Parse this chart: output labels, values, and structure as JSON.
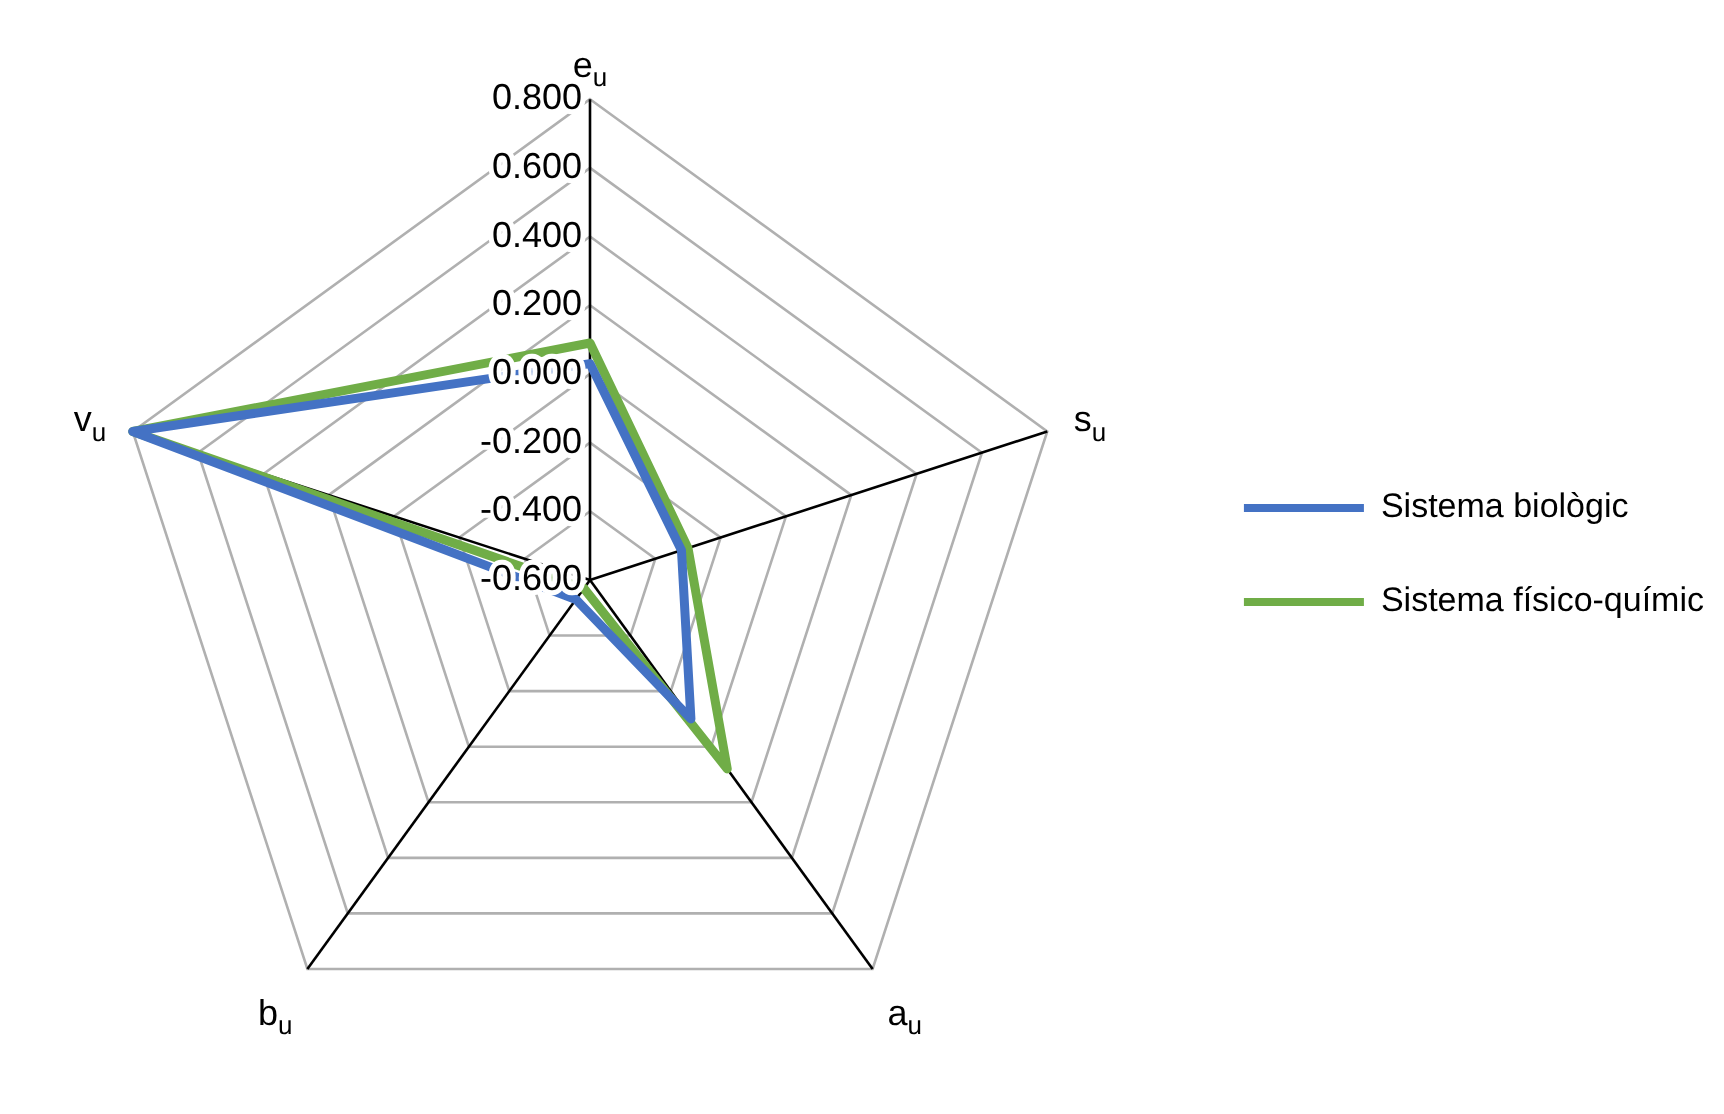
{
  "chart_data": {
    "type": "radar",
    "categories": [
      "e$_{u}$",
      "s$_{u}$",
      "a$_{u}$",
      "b$_{u}$",
      "v$_{u}$"
    ],
    "series": [
      {
        "name": "Sistema biològic",
        "color": "#4472c4",
        "values": [
          0.03,
          -0.32,
          -0.1,
          -0.53,
          0.8
        ]
      },
      {
        "name": "Sistema físico-químic",
        "color": "#70ad47",
        "values": [
          0.09,
          -0.3,
          0.08,
          -0.57,
          0.8
        ]
      }
    ],
    "ylim": [
      -0.6,
      0.8
    ],
    "yticks": [
      {
        "value": -0.6,
        "label": "-0.600"
      },
      {
        "value": -0.4,
        "label": "-0.400"
      },
      {
        "value": -0.2,
        "label": "-0.200"
      },
      {
        "value": 0,
        "label": "0.000"
      },
      {
        "value": 0.2,
        "label": "0.200"
      },
      {
        "value": 0.4,
        "label": "0.400"
      },
      {
        "value": 0.6,
        "label": "0.600"
      },
      {
        "value": 0.8,
        "label": "0.800"
      }
    ],
    "grid": true,
    "legend": "right",
    "marker": "none",
    "line_style": "solid"
  }
}
